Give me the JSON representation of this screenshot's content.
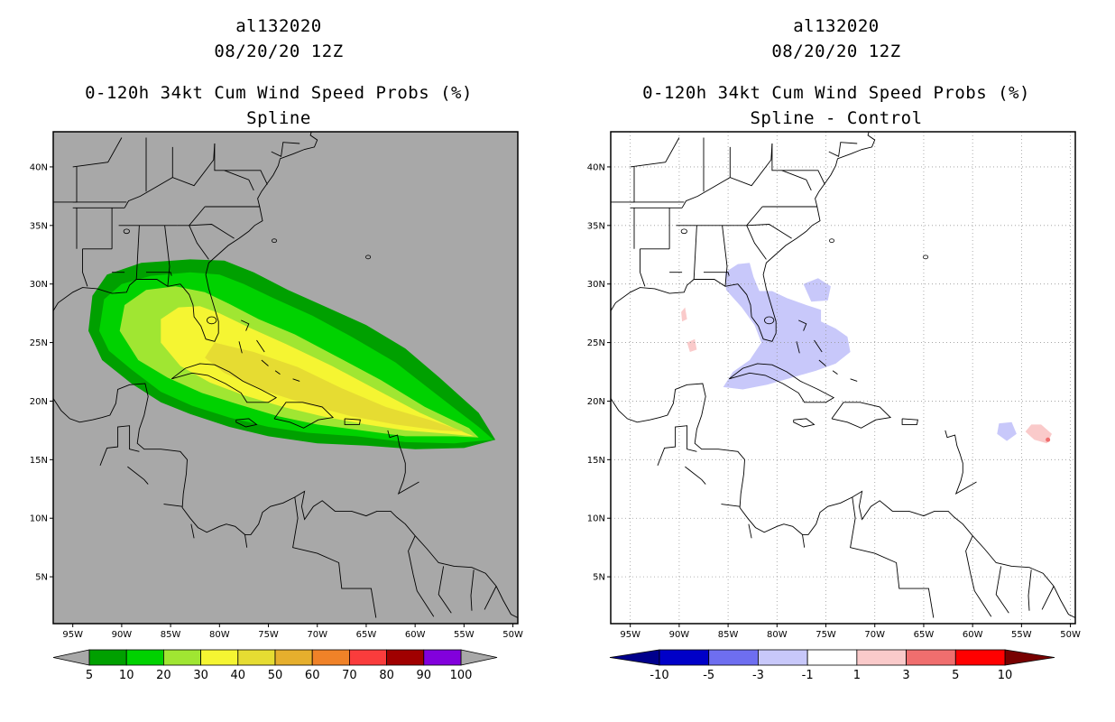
{
  "panels": [
    {
      "id": "left",
      "storm_id": "al132020",
      "datetime": "08/20/20 12Z",
      "product": "0-120h 34kt Cum Wind Speed Probs (%)",
      "subtitle": "Spline",
      "background": "#a8a8a8",
      "gridlines": false,
      "colorbar": {
        "labels": [
          "5",
          "10",
          "20",
          "30",
          "40",
          "50",
          "60",
          "70",
          "80",
          "90",
          "100"
        ],
        "colors": [
          "#00a000",
          "#00d200",
          "#a0e632",
          "#f5f532",
          "#e6dc32",
          "#e6af2d",
          "#f08228",
          "#fa3c3c",
          "#a00000",
          "#8200dc"
        ],
        "end_arrows": "#a8a8a8"
      }
    },
    {
      "id": "right",
      "storm_id": "al132020",
      "datetime": "08/20/20 12Z",
      "product": "0-120h 34kt Cum Wind Speed Probs (%)",
      "subtitle": "Spline - Control",
      "background": "#ffffff",
      "gridlines": true,
      "colorbar": {
        "labels": [
          "-10",
          "-5",
          "-3",
          "-1",
          "1",
          "3",
          "5",
          "10"
        ],
        "colors": [
          "#0000c8",
          "#6e6ef0",
          "#c8c8fa",
          "#ffffff",
          "#facaca",
          "#f06e6e",
          "#ff0000"
        ],
        "left_arrow": "#00008c",
        "right_arrow": "#780000"
      }
    }
  ],
  "axes": {
    "lon_labels": [
      "95W",
      "90W",
      "85W",
      "80W",
      "75W",
      "70W",
      "65W",
      "60W",
      "55W",
      "50W"
    ],
    "lat_labels": [
      "5N",
      "10N",
      "15N",
      "20N",
      "25N",
      "30N",
      "35N",
      "40N"
    ]
  }
}
